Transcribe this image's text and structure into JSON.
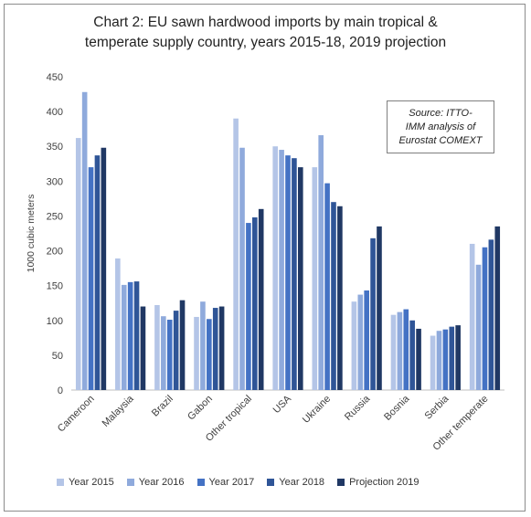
{
  "chart_data": {
    "type": "bar",
    "title_lines": [
      "Chart 2: EU sawn hardwood imports by main tropical &",
      "temperate supply country, years 2015-18, 2019 projection"
    ],
    "xlabel": "",
    "ylabel": "1000 cubic meters",
    "ylim": [
      0,
      450
    ],
    "yticks": [
      "0",
      "50",
      "100",
      "150",
      "200",
      "250",
      "300",
      "350",
      "400",
      "450"
    ],
    "grid": false,
    "legend_position": "bottom",
    "categories": [
      "Cameroon",
      "Malaysia",
      "Brazil",
      "Gabon",
      "Other tropical",
      "USA",
      "Ukraine",
      "Russia",
      "Bosnia",
      "Serbia",
      "Other temperate"
    ],
    "series": [
      {
        "name": "Year 2015",
        "color": "#b4c5e7",
        "values": [
          362,
          189,
          122,
          105,
          390,
          350,
          320,
          127,
          108,
          78,
          210
        ]
      },
      {
        "name": "Year 2016",
        "color": "#8faadc",
        "values": [
          428,
          151,
          106,
          127,
          348,
          345,
          366,
          137,
          112,
          85,
          180
        ]
      },
      {
        "name": "Year 2017",
        "color": "#4472c4",
        "values": [
          320,
          155,
          101,
          102,
          240,
          337,
          297,
          143,
          116,
          87,
          205
        ]
      },
      {
        "name": "Year 2018",
        "color": "#2f5597",
        "values": [
          337,
          156,
          114,
          118,
          248,
          333,
          270,
          218,
          100,
          91,
          216
        ]
      },
      {
        "name": "Projection 2019",
        "color": "#203864",
        "values": [
          348,
          120,
          129,
          120,
          260,
          320,
          264,
          235,
          88,
          93,
          235
        ]
      }
    ],
    "annotation_lines": [
      "Source: ITTO-",
      "IMM analysis of",
      "Eurostat COMEXT"
    ]
  }
}
